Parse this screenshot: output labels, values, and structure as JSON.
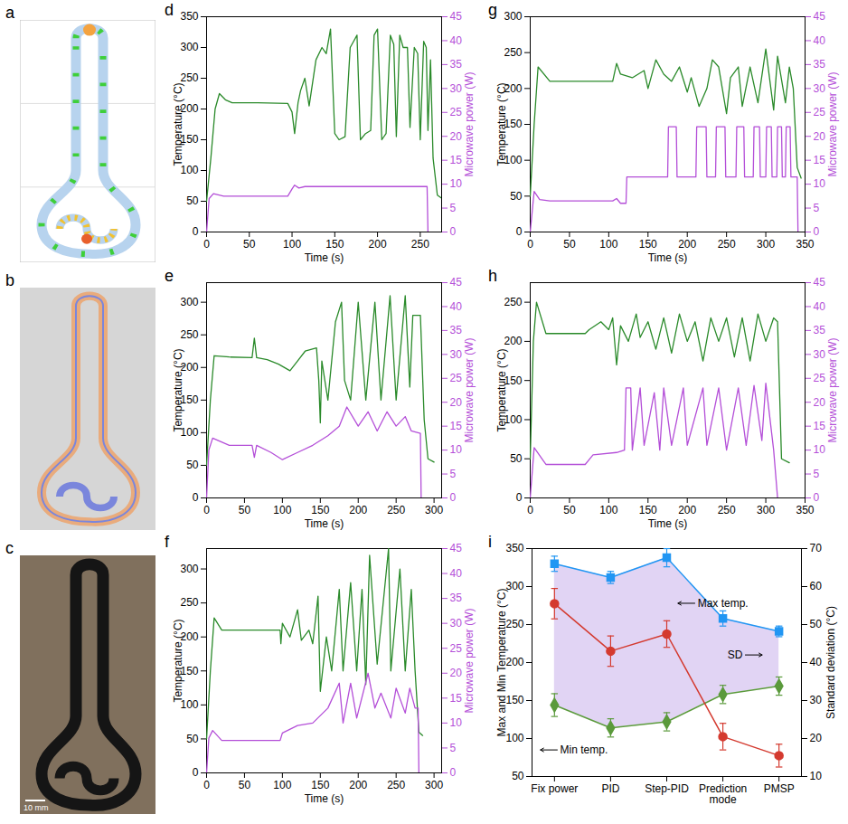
{
  "chart_data": [
    {
      "panel": "d",
      "type": "line",
      "xlabel": "Time (s)",
      "ylabel": "Temperature (°C)",
      "y2label": "Microwave power (W)",
      "xlim": [
        0,
        275
      ],
      "xticks": [
        0,
        50,
        100,
        150,
        200,
        250
      ],
      "ylim": [
        0,
        350
      ],
      "yticks": [
        0,
        50,
        100,
        150,
        200,
        250,
        300,
        350
      ],
      "y2lim": [
        0,
        45
      ],
      "y2ticks": [
        0,
        5,
        10,
        15,
        20,
        25,
        30,
        35,
        40,
        45
      ],
      "series": [
        {
          "color": "#2a8a2a",
          "x": [
            0,
            5,
            10,
            15,
            22,
            30,
            60,
            95,
            100,
            103,
            107,
            110,
            115,
            120,
            128,
            135,
            140,
            145,
            150,
            155,
            162,
            168,
            172,
            176,
            180,
            186,
            192,
            196,
            200,
            205,
            210,
            215,
            219,
            222,
            226,
            230,
            235,
            238,
            243,
            247,
            250,
            254,
            257,
            259,
            262,
            265,
            270,
            275
          ],
          "values": [
            50,
            120,
            200,
            225,
            215,
            210,
            210,
            209,
            195,
            160,
            210,
            230,
            250,
            205,
            280,
            300,
            290,
            330,
            160,
            150,
            155,
            300,
            310,
            320,
            150,
            160,
            165,
            320,
            330,
            150,
            160,
            320,
            305,
            155,
            320,
            300,
            300,
            170,
            300,
            290,
            150,
            310,
            300,
            165,
            280,
            120,
            60,
            55
          ]
        },
        {
          "color": "#b44fd8",
          "axis": "y2",
          "x": [
            0,
            3,
            8,
            20,
            60,
            95,
            100,
            103,
            108,
            115,
            258,
            259
          ],
          "values": [
            0,
            7,
            8,
            7.5,
            7.5,
            7.5,
            9,
            9.8,
            9.2,
            9.5,
            9.5,
            0
          ]
        }
      ]
    },
    {
      "panel": "e",
      "type": "line",
      "xlabel": "Time (s)",
      "ylabel": "Temperature (°C)",
      "y2label": "Microwave power (W)",
      "xlim": [
        0,
        310
      ],
      "xticks": [
        0,
        50,
        100,
        150,
        200,
        250,
        300
      ],
      "ylim": [
        0,
        330
      ],
      "yticks": [
        0,
        50,
        100,
        150,
        200,
        250,
        300
      ],
      "y2lim": [
        0,
        45
      ],
      "y2ticks": [
        0,
        5,
        10,
        15,
        20,
        25,
        30,
        35,
        40,
        45
      ],
      "series": [
        {
          "color": "#2a8a2a",
          "x": [
            0,
            5,
            10,
            30,
            60,
            63,
            66,
            80,
            95,
            110,
            120,
            130,
            145,
            148,
            150,
            152,
            160,
            170,
            178,
            182,
            190,
            200,
            210,
            222,
            230,
            242,
            250,
            262,
            268,
            272,
            282,
            287,
            292,
            300
          ],
          "values": [
            50,
            150,
            218,
            216,
            215,
            245,
            215,
            212,
            205,
            195,
            210,
            225,
            230,
            180,
            115,
            210,
            150,
            270,
            300,
            180,
            150,
            300,
            150,
            300,
            150,
            310,
            150,
            310,
            170,
            280,
            280,
            120,
            60,
            55
          ]
        },
        {
          "color": "#b44fd8",
          "axis": "y2",
          "x": [
            0,
            3,
            8,
            30,
            60,
            63,
            66,
            85,
            100,
            120,
            140,
            160,
            175,
            185,
            200,
            213,
            225,
            238,
            250,
            262,
            270,
            282,
            283
          ],
          "values": [
            0,
            10,
            12.5,
            11,
            11,
            8.5,
            11,
            9.5,
            8,
            9.5,
            11,
            13,
            15,
            19,
            15,
            18,
            14,
            18,
            15,
            17,
            14,
            13.5,
            0
          ]
        }
      ]
    },
    {
      "panel": "f",
      "type": "line",
      "xlabel": "Time (s)",
      "ylabel": "Temperature (°C)",
      "y2label": "Microwave power (W)",
      "xlim": [
        0,
        310
      ],
      "xticks": [
        0,
        50,
        100,
        150,
        200,
        250,
        300
      ],
      "ylim": [
        0,
        330
      ],
      "yticks": [
        0,
        50,
        100,
        150,
        200,
        250,
        300
      ],
      "y2lim": [
        0,
        45
      ],
      "y2ticks": [
        0,
        5,
        10,
        15,
        20,
        25,
        30,
        35,
        40,
        45
      ],
      "series": [
        {
          "color": "#2a8a2a",
          "x": [
            0,
            5,
            10,
            20,
            60,
            97,
            98,
            100,
            110,
            120,
            125,
            135,
            140,
            147,
            150,
            158,
            165,
            175,
            180,
            190,
            198,
            205,
            210,
            215,
            225,
            240,
            243,
            255,
            262,
            270,
            275,
            280,
            285
          ],
          "values": [
            50,
            150,
            228,
            210,
            210,
            210,
            190,
            220,
            200,
            240,
            195,
            210,
            190,
            260,
            120,
            200,
            150,
            270,
            150,
            280,
            150,
            270,
            130,
            320,
            160,
            330,
            150,
            300,
            150,
            270,
            150,
            60,
            55
          ]
        },
        {
          "color": "#b44fd8",
          "axis": "y2",
          "x": [
            0,
            3,
            8,
            20,
            97,
            100,
            120,
            140,
            160,
            175,
            180,
            190,
            198,
            213,
            222,
            230,
            243,
            250,
            262,
            268,
            275,
            279,
            280
          ],
          "values": [
            0,
            7,
            8.5,
            6.5,
            6.5,
            8,
            9.5,
            10,
            13,
            18,
            10,
            18,
            11,
            20,
            13,
            16,
            11,
            17,
            12,
            17,
            13,
            13,
            0
          ]
        }
      ]
    },
    {
      "panel": "g",
      "type": "line",
      "xlabel": "Time (s)",
      "ylabel": "Temperature (°C)",
      "y2label": "Microwave power (W)",
      "xlim": [
        0,
        350
      ],
      "xticks": [
        0,
        50,
        100,
        150,
        200,
        250,
        300,
        350
      ],
      "ylim": [
        0,
        300
      ],
      "yticks": [
        0,
        50,
        100,
        150,
        200,
        250,
        300
      ],
      "y2lim": [
        0,
        45
      ],
      "y2ticks": [
        0,
        5,
        10,
        15,
        20,
        25,
        30,
        35,
        40,
        45
      ],
      "series": [
        {
          "color": "#2a8a2a",
          "x": [
            0,
            5,
            10,
            25,
            105,
            110,
            115,
            130,
            145,
            150,
            160,
            170,
            180,
            190,
            200,
            205,
            215,
            225,
            232,
            240,
            250,
            255,
            265,
            270,
            280,
            290,
            300,
            310,
            315,
            325,
            330,
            335,
            340,
            345
          ],
          "values": [
            50,
            150,
            230,
            210,
            210,
            235,
            220,
            215,
            225,
            200,
            240,
            220,
            210,
            230,
            195,
            215,
            175,
            200,
            240,
            230,
            165,
            215,
            230,
            175,
            230,
            180,
            255,
            170,
            245,
            180,
            230,
            200,
            90,
            75
          ]
        },
        {
          "color": "#b44fd8",
          "axis": "y2",
          "x": [
            0,
            5,
            12,
            25,
            105,
            110,
            115,
            122,
            123,
            175,
            176,
            186,
            187,
            211,
            212,
            224,
            225,
            236,
            237,
            248,
            249,
            262,
            263,
            272,
            273,
            284,
            285,
            292,
            293,
            300,
            301,
            307,
            308,
            314,
            315,
            320,
            321,
            325,
            326,
            331,
            332,
            340,
            341
          ],
          "values": [
            0,
            8.5,
            6.8,
            6.5,
            6.5,
            7,
            6,
            6,
            11.5,
            11.5,
            22,
            22,
            11.5,
            11.5,
            22,
            22,
            11.5,
            11.5,
            22,
            22,
            11.5,
            11.5,
            22,
            22,
            11.5,
            11.5,
            22,
            22,
            11.5,
            11.5,
            22,
            22,
            11.5,
            11.5,
            22,
            22,
            11.5,
            11.5,
            22,
            22,
            11.5,
            11.5,
            0
          ]
        }
      ]
    },
    {
      "panel": "h",
      "type": "line",
      "xlabel": "Time (s)",
      "ylabel": "Temperature (°C)",
      "y2label": "Microwave power (W)",
      "xlim": [
        0,
        350
      ],
      "xticks": [
        0,
        50,
        100,
        150,
        200,
        250,
        300,
        350
      ],
      "ylim": [
        0,
        275
      ],
      "yticks": [
        0,
        50,
        100,
        150,
        200,
        250
      ],
      "y2lim": [
        0,
        45
      ],
      "y2ticks": [
        0,
        5,
        10,
        15,
        20,
        25,
        30,
        35,
        40,
        45
      ],
      "series": [
        {
          "color": "#2a8a2a",
          "x": [
            0,
            4,
            8,
            20,
            70,
            75,
            90,
            100,
            105,
            110,
            115,
            125,
            135,
            140,
            150,
            160,
            170,
            180,
            190,
            200,
            210,
            220,
            230,
            240,
            250,
            260,
            270,
            280,
            290,
            300,
            310,
            315,
            320,
            330
          ],
          "values": [
            50,
            200,
            250,
            210,
            210,
            215,
            225,
            215,
            230,
            170,
            220,
            200,
            235,
            205,
            225,
            190,
            230,
            185,
            235,
            200,
            225,
            175,
            230,
            200,
            230,
            180,
            230,
            175,
            235,
            200,
            230,
            225,
            50,
            45
          ]
        },
        {
          "color": "#b44fd8",
          "axis": "y2",
          "x": [
            0,
            5,
            20,
            70,
            80,
            110,
            120,
            122,
            128,
            130,
            140,
            145,
            158,
            165,
            170,
            180,
            195,
            200,
            220,
            225,
            240,
            250,
            265,
            275,
            285,
            295,
            300,
            310,
            315
          ],
          "values": [
            0,
            10.5,
            7,
            7,
            9,
            9.5,
            10,
            23,
            23,
            10,
            23,
            11,
            22,
            10,
            23,
            11,
            23,
            11,
            23,
            11,
            23,
            10,
            23,
            11,
            23.5,
            12,
            24,
            10,
            0
          ]
        }
      ]
    },
    {
      "panel": "i",
      "type": "line",
      "ylabel": "Max and Min Temperature (°C)",
      "y2label": "Standard deviation (°C)",
      "categories": [
        "Fix power",
        "PID",
        "Step-PID",
        "Prediction mode",
        "PMSP"
      ],
      "ylim": [
        50,
        350
      ],
      "yticks": [
        50,
        100,
        150,
        200,
        250,
        300,
        350
      ],
      "y2lim": [
        10,
        70
      ],
      "y2ticks": [
        10,
        20,
        30,
        40,
        50,
        60,
        70
      ],
      "series": [
        {
          "name": "Max temp.",
          "color": "#2196f3",
          "marker": "square",
          "values": [
            330,
            312,
            338,
            258,
            241
          ],
          "errors": [
            10,
            8,
            12,
            10,
            7
          ]
        },
        {
          "name": "Min temp.",
          "color": "#5b9a3c",
          "marker": "diamond",
          "values": [
            144,
            114,
            122,
            158,
            169
          ],
          "errors": [
            15,
            12,
            12,
            12,
            12
          ]
        },
        {
          "name": "SD",
          "color": "#d43a2f",
          "marker": "circle",
          "axis": "y2",
          "values": [
            55.5,
            43,
            47.5,
            20.5,
            15.5
          ],
          "errors": [
            4,
            4,
            3.5,
            3.5,
            3
          ]
        }
      ]
    }
  ],
  "images": [
    {
      "panel": "a"
    },
    {
      "panel": "b"
    },
    {
      "panel": "c",
      "scale_bar": "10 mm"
    }
  ]
}
